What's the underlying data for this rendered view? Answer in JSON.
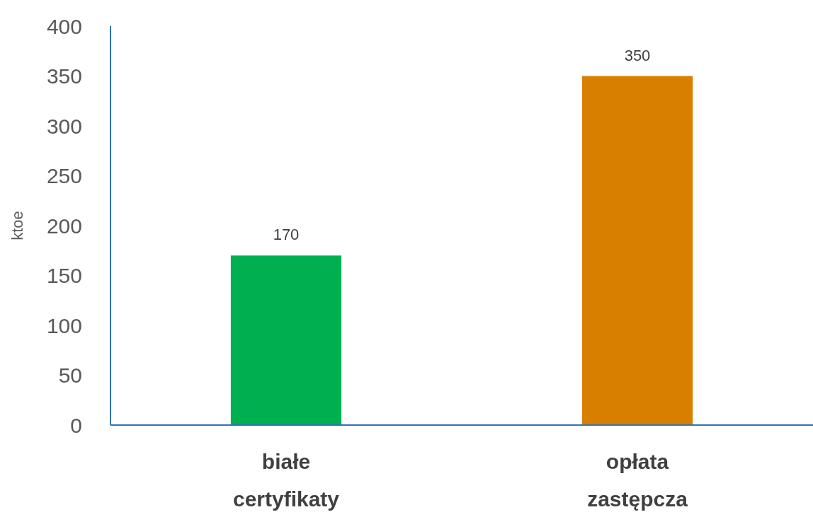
{
  "chart_data": {
    "type": "bar",
    "ylabel": "ktoe",
    "categories": [
      "białe certyfikaty",
      "opłata zastępcza"
    ],
    "values": [
      170,
      350
    ],
    "colors": [
      "#00b050",
      "#d97f00"
    ],
    "ylim": [
      0,
      400
    ],
    "yticks": [
      0,
      50,
      100,
      150,
      200,
      250,
      300,
      350,
      400
    ],
    "grid": false,
    "data_labels": true
  }
}
